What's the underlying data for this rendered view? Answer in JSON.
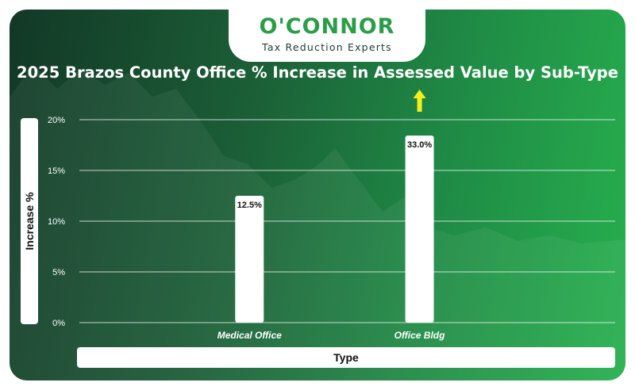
{
  "brand": {
    "name": "O'CONNOR",
    "tagline": "Tax Reduction Experts"
  },
  "colors": {
    "bar": "#ffffff",
    "arrow": "#f2ef1a",
    "brand_green": "#2a9d48",
    "grid": "#ffffff"
  },
  "chart_data": {
    "type": "bar",
    "title": "2025 Brazos County Office % Increase in Assessed Value by Sub-Type",
    "xlabel": "Type",
    "ylabel": "Increase %",
    "categories": [
      "Medical Office",
      "Office Bldg"
    ],
    "values": [
      12.5,
      33.0
    ],
    "data_labels": [
      "12.5%",
      "33.0%"
    ],
    "yticks": [
      "0%",
      "5%",
      "10%",
      "15%",
      "20%"
    ],
    "ytick_values": [
      0,
      5,
      10,
      15,
      20
    ],
    "ylim": [
      0,
      20
    ],
    "overflow_indicator": "up-arrow",
    "grid": true,
    "legend": "none"
  }
}
